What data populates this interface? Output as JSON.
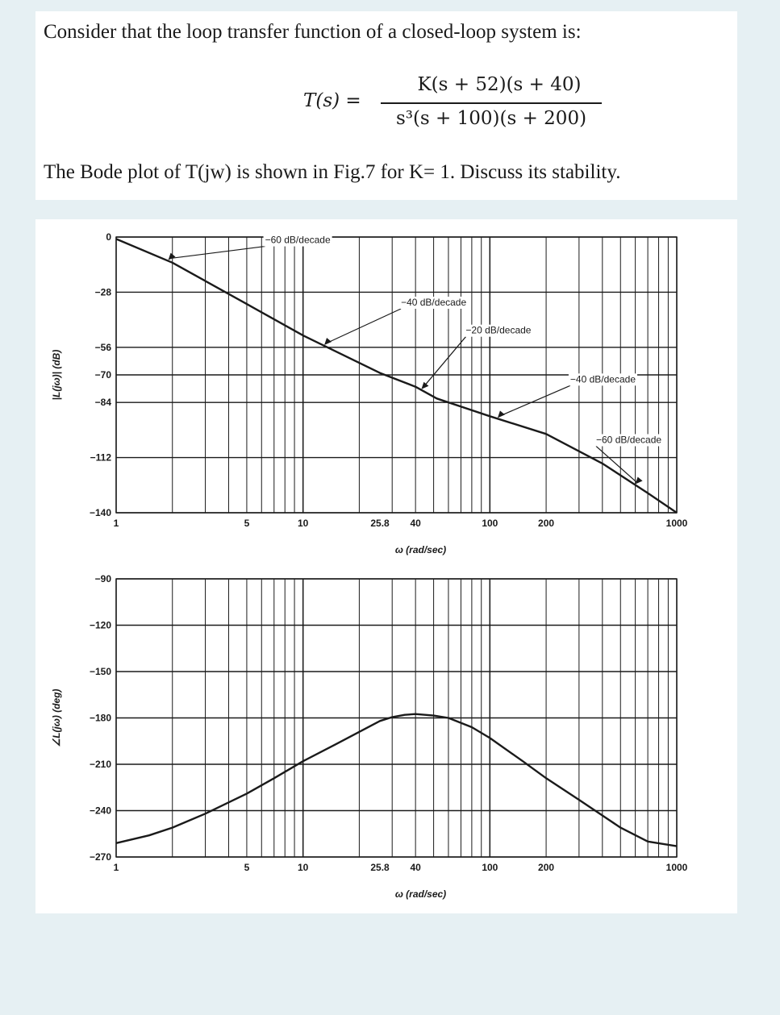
{
  "problem": {
    "intro": "Consider that the loop transfer function of a closed-loop system is:",
    "equation_lhs": "T(s) =",
    "equation_numerator": "K(s + 52)(s + 40)",
    "equation_denominator": "s³(s + 100)(s + 200)",
    "question": "The Bode plot of T(jw) is shown in Fig.7 for K= 1. Discuss its stability."
  },
  "colors": {
    "page_bg": "#e6f0f3",
    "card_bg": "#ffffff",
    "ink": "#1a1a1a"
  },
  "chart_data": [
    {
      "type": "line",
      "ylabel": "|L(jω)| (dB)",
      "xlabel": "ω (rad/sec)",
      "x_scale": "log",
      "xlim": [
        1,
        1000
      ],
      "ylim": [
        -140,
        0
      ],
      "x_ticks": [
        1,
        5,
        10,
        25.8,
        40,
        100,
        200,
        1000
      ],
      "x_tick_labels": [
        "1",
        "5",
        "10",
        "25.8",
        "40",
        "100",
        "200",
        "1000"
      ],
      "y_ticks": [
        0,
        -28,
        -56,
        -70,
        -84,
        -112,
        -140
      ],
      "grid": true,
      "series": [
        {
          "x": [
            1,
            2,
            5,
            10,
            25.8,
            40,
            52,
            100,
            200,
            400,
            700,
            1000
          ],
          "y": [
            -1,
            -13,
            -34,
            -50,
            -69,
            -76,
            -82,
            -91,
            -100,
            -115,
            -130,
            -140
          ]
        }
      ],
      "annotations": [
        {
          "text": "-60 dB/decade",
          "x": 1.9
        },
        {
          "text": "-40 dB/decade",
          "x": 13
        },
        {
          "text": "-20 dB/decade",
          "x": 43
        },
        {
          "text": "-40 dB/decade",
          "x": 110
        },
        {
          "text": "-60 dB/decade",
          "x": 600
        }
      ]
    },
    {
      "type": "line",
      "ylabel": "∠L(jω) (deg)",
      "xlabel": "ω (rad/sec)",
      "x_scale": "log",
      "xlim": [
        1,
        1000
      ],
      "ylim": [
        -270,
        -90
      ],
      "x_ticks": [
        1,
        5,
        10,
        25.8,
        40,
        100,
        200,
        1000
      ],
      "x_tick_labels": [
        "1",
        "5",
        "10",
        "25.8",
        "40",
        "100",
        "200",
        "1000"
      ],
      "y_ticks": [
        -90,
        -120,
        -150,
        -180,
        -210,
        -240,
        -270
      ],
      "grid": true,
      "series": [
        {
          "x": [
            1,
            1.5,
            2,
            3,
            5,
            7,
            10,
            15,
            20,
            25.8,
            30,
            35,
            40,
            50,
            60,
            80,
            100,
            150,
            200,
            300,
            500,
            700,
            1000
          ],
          "y": [
            -261,
            -256,
            -251,
            -242,
            -229,
            -219,
            -208,
            -197,
            -189,
            -182,
            -179.5,
            -178,
            -177.5,
            -178.5,
            -180,
            -186,
            -193,
            -208,
            -219,
            -233,
            -251,
            -260,
            -263
          ]
        }
      ]
    }
  ]
}
